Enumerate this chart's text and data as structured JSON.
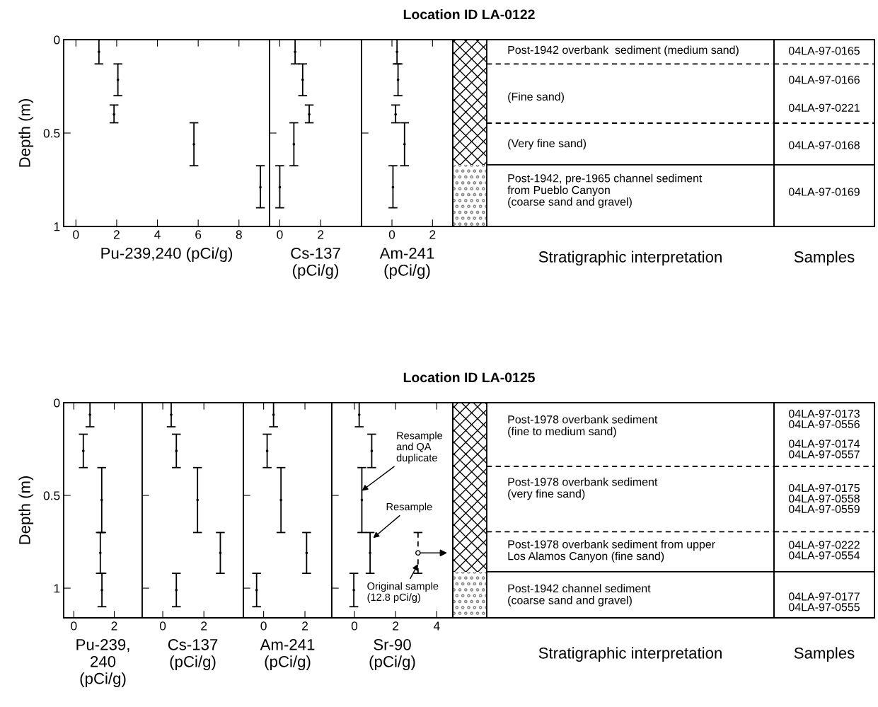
{
  "chart_data": [
    {
      "type": "other",
      "title": "Location ID LA-0122"
    },
    {
      "type": "scatter",
      "ylabel": "Depth (m)",
      "xlabel": "Pu-239,240 (pCi/g)",
      "marker": "circle",
      "x": [
        1.13,
        2.06,
        1.87,
        5.79,
        9.05
      ],
      "values": [
        0.065,
        0.215,
        0.4,
        0.56,
        0.79
      ],
      "errors": [
        [
          0,
          0.13
        ],
        [
          0.13,
          0.3
        ],
        [
          0.35,
          0.445
        ],
        [
          0.445,
          0.675
        ],
        [
          0.675,
          0.9
        ]
      ],
      "xlim": [
        -0.6,
        9.5
      ],
      "xticks": [
        0,
        2,
        4,
        6,
        8
      ],
      "ylim": [
        1,
        0
      ],
      "yticks": [
        0,
        0.5,
        1
      ]
    },
    {
      "type": "scatter",
      "xlabel": "Cs-137\n(pCi/g)",
      "marker": "circle",
      "x": [
        0.75,
        1.12,
        1.44,
        0.69,
        0.0
      ],
      "values": [
        0.065,
        0.215,
        0.4,
        0.56,
        0.79
      ],
      "errors": [
        [
          0,
          0.13
        ],
        [
          0.13,
          0.3
        ],
        [
          0.35,
          0.445
        ],
        [
          0.445,
          0.675
        ],
        [
          0.675,
          0.9
        ]
      ],
      "xlim": [
        -0.5,
        4
      ],
      "xticks": [
        0,
        2
      ],
      "ylim": [
        1,
        0
      ],
      "yticks": [
        0,
        0.5,
        1
      ],
      "tick_labels": "x"
    },
    {
      "type": "scatter",
      "xlabel": "Am-241\n(pCi/g)",
      "marker": "circle",
      "x": [
        0.25,
        0.3,
        0.18,
        0.62,
        0.05
      ],
      "values": [
        0.065,
        0.215,
        0.4,
        0.56,
        0.79
      ],
      "errors": [
        [
          0,
          0.13
        ],
        [
          0.13,
          0.3
        ],
        [
          0.35,
          0.445
        ],
        [
          0.445,
          0.675
        ],
        [
          0.675,
          0.9
        ]
      ],
      "xlim": [
        -1.5,
        3.0
      ],
      "xticks": [
        0,
        2
      ],
      "ylim": [
        1,
        0
      ],
      "yticks": [
        0,
        0.5,
        1
      ],
      "tick_labels": "x"
    },
    {
      "type": "other",
      "xlabel": "Stratigraphic interpretation",
      "annotations": [
        "Post-1942 overbank  sediment (medium sand)",
        "(Fine sand)",
        "(Very fine sand)",
        "Post-1942, pre-1965 channel sediment\nfrom Pueblo Canyon\n(coarse sand and gravel)"
      ]
    },
    {
      "type": "other",
      "xlabel": "Samples",
      "annotations": [
        "04LA-97-0165",
        "04LA-97-0166",
        "04LA-97-0221",
        "04LA-97-0168",
        "04LA-97-0169"
      ]
    },
    {
      "type": "other",
      "title": "Location ID LA-0125"
    },
    {
      "type": "scatter",
      "ylabel": "Depth (m)",
      "xlabel": "Pu-239,\n240\n(pCi/g)",
      "marker": "circle",
      "x": [
        0.8,
        0.47,
        1.38,
        1.31,
        1.39
      ],
      "values": [
        0.065,
        0.26,
        0.525,
        0.81,
        1.01
      ],
      "errors": [
        [
          0,
          0.13
        ],
        [
          0.17,
          0.35
        ],
        [
          0.35,
          0.7
        ],
        [
          0.7,
          0.92
        ],
        [
          0.92,
          1.1
        ]
      ],
      "xlim": [
        -0.5,
        3.38
      ],
      "xticks": [
        0,
        2
      ],
      "ylim": [
        1.16,
        0
      ],
      "yticks": [
        0,
        0.5,
        1
      ]
    },
    {
      "type": "scatter",
      "xlabel": "Cs-137\n(pCi/g)",
      "marker": "circle",
      "x": [
        0.41,
        0.66,
        1.69,
        2.8,
        0.66
      ],
      "values": [
        0.065,
        0.26,
        0.525,
        0.81,
        1.01
      ],
      "errors": [
        [
          0,
          0.13
        ],
        [
          0.17,
          0.35
        ],
        [
          0.35,
          0.7
        ],
        [
          0.7,
          0.92
        ],
        [
          0.92,
          1.1
        ]
      ],
      "xlim": [
        -1.0,
        3.92
      ],
      "xticks": [
        0,
        2
      ],
      "ylim": [
        1.16,
        0
      ],
      "yticks": [
        0,
        0.5,
        1
      ],
      "tick_labels": "x"
    },
    {
      "type": "scatter",
      "xlabel": "Am-241\n(pCi/g)",
      "marker": "circle",
      "x": [
        0.48,
        0.17,
        0.84,
        2.08,
        -0.34
      ],
      "values": [
        0.065,
        0.26,
        0.525,
        0.81,
        1.01
      ],
      "errors": [
        [
          0,
          0.13
        ],
        [
          0.17,
          0.35
        ],
        [
          0.35,
          0.7
        ],
        [
          0.7,
          0.92
        ],
        [
          0.92,
          1.1
        ]
      ],
      "xlim": [
        -0.98,
        3.3
      ],
      "xticks": [
        0,
        2
      ],
      "ylim": [
        1.16,
        0
      ],
      "yticks": [
        0,
        0.5,
        1
      ],
      "tick_labels": "x"
    },
    {
      "type": "scatter",
      "xlabel": "Sr-90\n(pCi/g)",
      "marker": "circle",
      "xlim": [
        -1.1,
        4.78
      ],
      "xticks": [
        0,
        2,
        4
      ],
      "ylim": [
        1.16,
        0
      ],
      "yticks": [
        0,
        0.5,
        1
      ],
      "tick_labels": "x",
      "series": [
        {
          "color": "#000000",
          "x": [
            0.23,
            0.84,
            0.36,
            0.76,
            -0.03
          ],
          "values": [
            0.065,
            0.26,
            0.525,
            0.81,
            1.01
          ],
          "errors": [
            [
              0,
              0.13
            ],
            [
              0.17,
              0.35
            ],
            [
              0.35,
              0.7
            ],
            [
              0.7,
              0.92
            ],
            [
              0.92,
              1.1
            ]
          ],
          "line_style": "solid"
        },
        {
          "color": "#000000",
          "x": [
            3.09
          ],
          "values": [
            0.81
          ],
          "errors": [
            [
              0.7,
              0.92
            ]
          ],
          "line_style": "dashed"
        }
      ],
      "annotations": [
        {
          "text": "Resample\nand QA\nduplicate",
          "x": 0.36,
          "y": 0.475
        },
        {
          "text": "Resample",
          "x": 0.91,
          "y": 0.73
        },
        {
          "text": "Original sample\n(12.8 pCi/g)",
          "x": 3.09,
          "y": 0.87
        }
      ]
    },
    {
      "type": "other",
      "xlabel": "Stratigraphic interpretation",
      "annotations": [
        "Post-1978 overbank sediment\n(fine to medium sand)",
        "Post-1978 overbank sediment\n(very fine sand)",
        "Post-1978 overbank sediment from upper\nLos Alamos Canyon (fine sand)",
        "Post-1942 channel sediment\n(coarse sand and gravel)"
      ]
    },
    {
      "type": "other",
      "xlabel": "Samples",
      "annotations": [
        "04LA-97-0173\n04LA-97-0556",
        "04LA-97-0174\n04LA-97-0557",
        "04LA-97-0175\n04LA-97-0558\n04LA-97-0559",
        "04LA-97-0222\n04LA-97-0554",
        "04LA-97-0177\n04LA-97-0555"
      ]
    }
  ]
}
